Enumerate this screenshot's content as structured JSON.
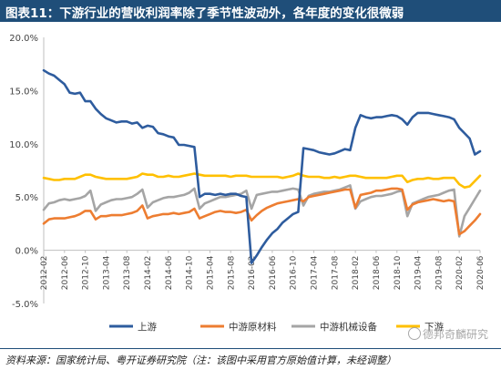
{
  "title": "图表11：下游行业的营收利润率除了季节性波动外，各年度的变化很微弱",
  "source": "资料来源：国家统计局、粤开证券研究院（注：该图中采用官方原始值计算，未经调整）",
  "watermark": "德邦奇麟研究",
  "colors": {
    "title_bg": "#1f4e79",
    "upstream": "#2e5c9e",
    "midstream_material": "#ed7d31",
    "midstream_equipment": "#a5a5a5",
    "downstream": "#ffc000"
  },
  "chart_data": {
    "type": "line",
    "title": "",
    "xlabel": "",
    "ylabel": "",
    "ylim": [
      -5,
      20
    ],
    "yticks": [
      "-5.0%",
      "0.0%",
      "5.0%",
      "10.0%",
      "15.0%",
      "20.0%"
    ],
    "ytick_values": [
      -5,
      0,
      5,
      10,
      15,
      20
    ],
    "grid": false,
    "legend_position": "bottom",
    "categories": [
      "2012-02",
      "2012-03",
      "2012-04",
      "2012-05",
      "2012-06",
      "2012-07",
      "2012-08",
      "2012-09",
      "2012-10",
      "2012-11",
      "2013-02",
      "2013-03",
      "2013-04",
      "2013-05",
      "2013-06",
      "2013-07",
      "2013-08",
      "2013-09",
      "2013-10",
      "2013-11",
      "2014-02",
      "2014-03",
      "2014-04",
      "2014-05",
      "2014-06",
      "2014-07",
      "2014-08",
      "2014-09",
      "2014-10",
      "2014-11",
      "2015-02",
      "2015-03",
      "2015-04",
      "2015-05",
      "2015-06",
      "2015-07",
      "2015-08",
      "2015-09",
      "2015-10",
      "2015-11",
      "2016-02",
      "2016-03",
      "2016-04",
      "2016-05",
      "2016-06",
      "2016-07",
      "2016-08",
      "2016-09",
      "2016-10",
      "2016-11",
      "2017-02",
      "2017-03",
      "2017-04",
      "2017-05",
      "2017-06",
      "2017-07",
      "2017-08",
      "2017-09",
      "2017-10",
      "2017-11",
      "2018-02",
      "2018-03",
      "2018-04",
      "2018-05",
      "2018-06",
      "2018-07",
      "2018-08",
      "2018-09",
      "2018-10",
      "2018-11",
      "2019-02",
      "2019-03",
      "2019-04",
      "2019-05",
      "2019-06",
      "2019-07",
      "2019-08",
      "2019-09",
      "2019-10",
      "2019-11",
      "2020-02",
      "2020-03",
      "2020-04",
      "2020-05",
      "2020-06"
    ],
    "xtick_labels": [
      "2012-02",
      "2012-06",
      "2012-10",
      "2013-04",
      "2013-08",
      "2014-02",
      "2014-06",
      "2014-10",
      "2015-04",
      "2015-08",
      "2016-02",
      "2016-06",
      "2016-10",
      "2017-04",
      "2017-08",
      "2018-02",
      "2018-06",
      "2018-10",
      "2019-04",
      "2019-08",
      "2020-02",
      "2020-06"
    ],
    "series": [
      {
        "name": "上游",
        "values": [
          16.9,
          16.6,
          16.4,
          16.0,
          15.6,
          14.8,
          14.7,
          14.8,
          14.0,
          14.0,
          13.3,
          12.8,
          12.4,
          12.2,
          12.0,
          12.1,
          12.1,
          11.9,
          12.0,
          11.5,
          11.7,
          11.6,
          11.0,
          10.9,
          10.7,
          10.6,
          9.9,
          9.9,
          9.8,
          9.7,
          5.0,
          5.3,
          5.3,
          5.2,
          5.3,
          5.2,
          5.3,
          5.3,
          5.1,
          5.0,
          -1.2,
          -0.5,
          0.3,
          1.0,
          1.6,
          2.0,
          2.6,
          3.0,
          3.4,
          3.6,
          9.6,
          9.5,
          9.4,
          9.2,
          9.1,
          9.0,
          9.1,
          9.3,
          9.5,
          9.4,
          11.5,
          12.7,
          12.5,
          12.4,
          12.5,
          12.5,
          12.6,
          12.7,
          12.6,
          12.3,
          11.8,
          12.5,
          12.9,
          12.9,
          12.9,
          12.8,
          12.7,
          12.6,
          12.5,
          12.3,
          11.5,
          11.0,
          10.5,
          9.0,
          9.3
        ]
      },
      {
        "name": "中游原材料",
        "values": [
          2.5,
          2.9,
          3.0,
          3.0,
          3.0,
          3.1,
          3.2,
          3.4,
          3.7,
          3.7,
          2.9,
          3.2,
          3.2,
          3.3,
          3.3,
          3.3,
          3.4,
          3.5,
          3.7,
          4.2,
          3.0,
          3.2,
          3.3,
          3.4,
          3.4,
          3.5,
          3.4,
          3.5,
          3.6,
          3.9,
          3.0,
          3.2,
          3.4,
          3.6,
          3.7,
          3.6,
          3.6,
          3.5,
          3.6,
          3.8,
          2.8,
          3.3,
          3.7,
          4.0,
          4.2,
          4.4,
          4.5,
          4.6,
          4.7,
          4.8,
          4.6,
          5.0,
          5.1,
          5.2,
          5.3,
          5.4,
          5.5,
          5.6,
          5.7,
          5.7,
          4.0,
          5.2,
          5.3,
          5.4,
          5.6,
          5.6,
          5.7,
          5.8,
          5.8,
          5.7,
          3.8,
          4.3,
          4.5,
          4.6,
          4.7,
          4.8,
          4.7,
          4.6,
          4.7,
          4.6,
          1.5,
          1.8,
          2.3,
          2.8,
          3.4
        ]
      },
      {
        "name": "中游机械设备",
        "values": [
          3.8,
          4.4,
          4.5,
          4.7,
          4.8,
          4.7,
          4.8,
          4.9,
          5.1,
          5.6,
          3.7,
          4.3,
          4.5,
          4.7,
          4.8,
          4.8,
          4.9,
          5.0,
          5.3,
          5.7,
          4.0,
          4.5,
          4.7,
          4.9,
          5.0,
          5.0,
          5.1,
          5.2,
          5.4,
          5.8,
          3.9,
          4.4,
          4.6,
          4.8,
          5.0,
          5.0,
          5.1,
          5.2,
          5.3,
          5.6,
          3.9,
          5.2,
          5.3,
          5.4,
          5.5,
          5.5,
          5.6,
          5.7,
          5.8,
          5.7,
          4.2,
          5.1,
          5.3,
          5.4,
          5.5,
          5.5,
          5.6,
          5.7,
          5.9,
          6.1,
          3.9,
          4.6,
          4.8,
          5.0,
          5.1,
          5.1,
          5.2,
          5.3,
          5.5,
          5.6,
          3.2,
          4.4,
          4.6,
          4.8,
          5.0,
          5.1,
          5.2,
          5.4,
          5.6,
          5.7,
          1.3,
          3.2,
          4.0,
          4.8,
          5.6
        ]
      },
      {
        "name": "下游",
        "values": [
          6.8,
          6.7,
          6.6,
          6.6,
          6.7,
          6.7,
          6.7,
          6.9,
          7.1,
          7.1,
          6.9,
          6.8,
          6.7,
          6.7,
          6.7,
          6.7,
          6.7,
          6.8,
          6.9,
          7.2,
          7.1,
          7.1,
          6.9,
          6.9,
          7.0,
          6.9,
          6.9,
          7.0,
          7.1,
          7.2,
          7.1,
          7.0,
          7.0,
          7.0,
          7.0,
          7.0,
          6.9,
          7.0,
          7.0,
          7.0,
          6.9,
          6.9,
          6.9,
          6.9,
          6.9,
          6.9,
          6.8,
          6.9,
          7.0,
          7.2,
          7.0,
          6.9,
          6.9,
          6.9,
          6.8,
          6.8,
          6.9,
          6.8,
          6.9,
          7.0,
          7.0,
          6.9,
          6.8,
          6.8,
          6.8,
          6.8,
          6.8,
          6.9,
          7.0,
          7.0,
          6.4,
          6.6,
          6.7,
          6.7,
          6.8,
          6.7,
          6.7,
          6.8,
          6.8,
          6.8,
          6.2,
          5.9,
          6.0,
          6.5,
          7.0
        ]
      }
    ]
  }
}
